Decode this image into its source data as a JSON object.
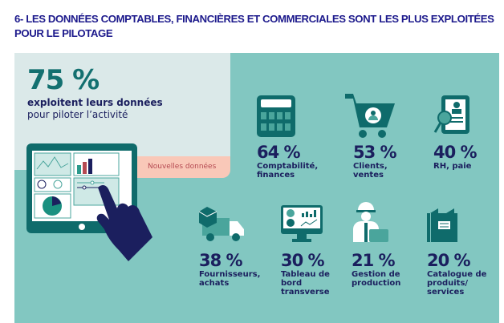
{
  "title": "6- LES DONNÉES COMPTABLES, FINANCIÈRES ET COMMERCIALES SONT LES PLUS EXPLOITÉES POUR LE PILOTAGE",
  "headline": {
    "value": "75 %",
    "line1": "exploitent leurs données",
    "line2": "pour piloter l’activité"
  },
  "tag": "Nouvelles données",
  "colors": {
    "title": "#1d1a8c",
    "panel": "#82c7c1",
    "light_panel": "#dbe9e9",
    "icon": "#0f6b6b",
    "text": "#1b1f5e",
    "tag": "#f9c8b8"
  },
  "stats": [
    {
      "value": "64 %",
      "label": "Comptabilité, finances",
      "icon": "calculator-icon"
    },
    {
      "value": "53 %",
      "label": "Clients, ventes",
      "icon": "shopping-cart-icon"
    },
    {
      "value": "40 %",
      "label": "RH, paie",
      "icon": "hr-document-icon"
    },
    {
      "value": "38 %",
      "label": "Fournisseurs, achats",
      "icon": "delivery-truck-icon"
    },
    {
      "value": "30 %",
      "label": "Tableau de bord transverse",
      "icon": "dashboard-monitor-icon"
    },
    {
      "value": "21 %",
      "label": "Gestion de production",
      "icon": "worker-icon"
    },
    {
      "value": "20 %",
      "label": "Catalogue de produits/ services",
      "icon": "catalogue-icon"
    }
  ]
}
